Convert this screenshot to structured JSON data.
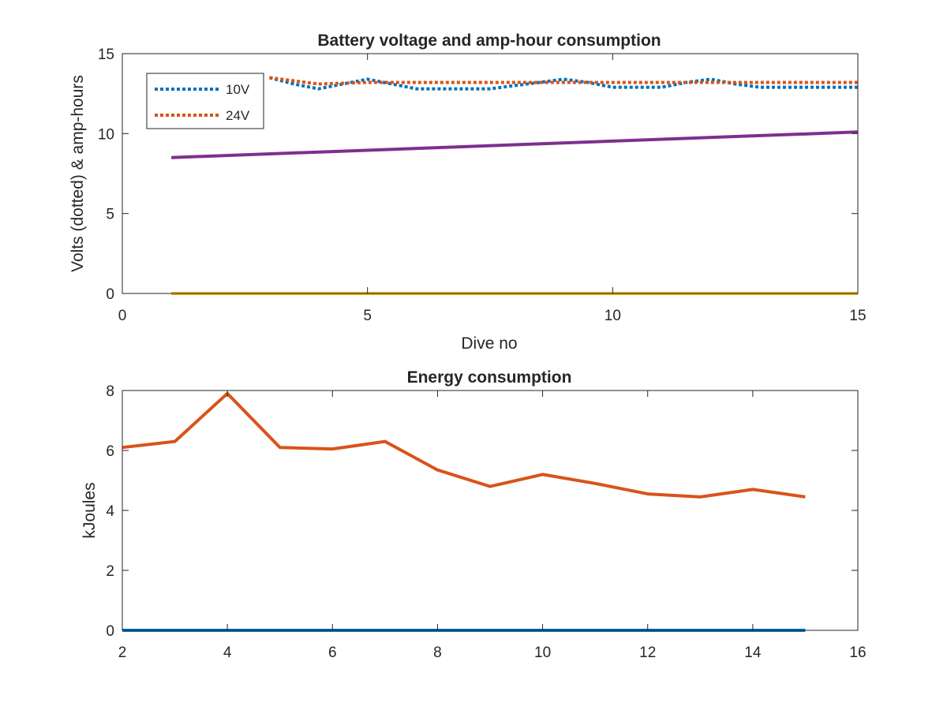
{
  "chart_data": [
    {
      "type": "line",
      "title": "Battery voltage and amp-hour consumption",
      "xlabel": "Dive no",
      "ylabel": "Volts (dotted) & amp-hours",
      "xlim": [
        0,
        15
      ],
      "ylim": [
        0,
        15
      ],
      "xticks": [
        "0",
        "5",
        "10",
        "15"
      ],
      "yticks": [
        "0",
        "5",
        "10",
        "15"
      ],
      "grid": false,
      "legend_position": "top-left",
      "series": [
        {
          "name": "10V",
          "style": "dotted",
          "color": "#0072BD",
          "x": [
            3,
            3.5,
            4,
            4.5,
            5,
            5.5,
            6,
            6.5,
            7,
            7.5,
            8,
            8.5,
            9,
            9.5,
            10,
            10.5,
            11,
            11.5,
            12,
            12.5,
            13,
            13.5,
            14,
            14.5,
            15
          ],
          "y": [
            13.5,
            13.1,
            12.8,
            13.1,
            13.4,
            13.1,
            12.8,
            12.8,
            12.8,
            12.8,
            13.0,
            13.2,
            13.4,
            13.2,
            12.9,
            12.9,
            12.9,
            13.2,
            13.4,
            13.1,
            12.9,
            12.9,
            12.9,
            12.9,
            12.9
          ]
        },
        {
          "name": "24V",
          "style": "dotted",
          "color": "#D95319",
          "x": [
            3,
            4,
            5,
            6,
            7,
            8,
            9,
            10,
            11,
            12,
            13,
            14,
            15
          ],
          "y": [
            13.5,
            13.1,
            13.2,
            13.2,
            13.2,
            13.2,
            13.2,
            13.2,
            13.2,
            13.2,
            13.2,
            13.2,
            13.2
          ]
        },
        {
          "style": "solid",
          "color": "#EDB120",
          "x": [
            1,
            15
          ],
          "y": [
            0,
            0
          ]
        },
        {
          "style": "solid",
          "color": "#7E2F8E",
          "x": [
            1,
            15
          ],
          "y": [
            8.5,
            10.1
          ]
        }
      ],
      "legend": [
        {
          "label": "10V",
          "color": "#0072BD"
        },
        {
          "label": "24V",
          "color": "#D95319"
        }
      ]
    },
    {
      "type": "line",
      "title": "Energy consumption",
      "xlabel": "",
      "ylabel": "kJoules",
      "xlim": [
        2,
        16
      ],
      "ylim": [
        0,
        8
      ],
      "xticks": [
        "2",
        "4",
        "6",
        "8",
        "10",
        "12",
        "14",
        "16"
      ],
      "yticks": [
        "0",
        "2",
        "4",
        "6",
        "8"
      ],
      "grid": false,
      "series": [
        {
          "style": "solid",
          "color": "#0072BD",
          "x": [
            2,
            15
          ],
          "y": [
            0,
            0
          ]
        },
        {
          "style": "solid",
          "color": "#D95319",
          "x": [
            2,
            3,
            4,
            5,
            6,
            7,
            8,
            9,
            10,
            11,
            12,
            13,
            14,
            15
          ],
          "y": [
            6.1,
            6.3,
            7.9,
            6.1,
            6.05,
            6.3,
            5.35,
            4.8,
            5.2,
            4.9,
            4.55,
            4.45,
            4.7,
            4.45
          ]
        }
      ]
    }
  ]
}
